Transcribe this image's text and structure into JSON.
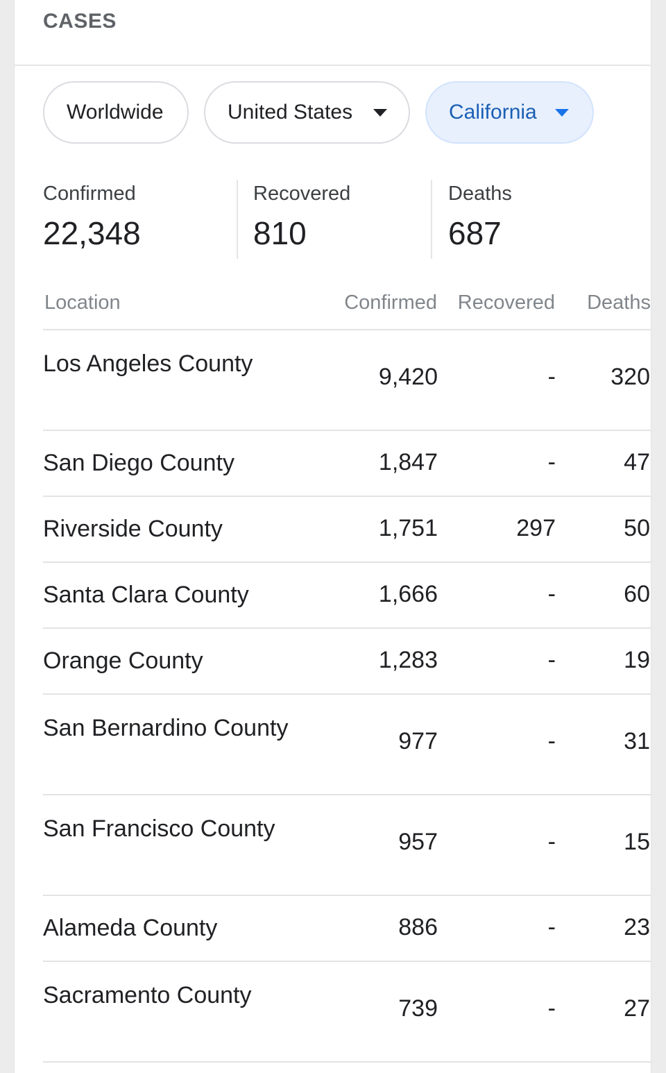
{
  "header": {
    "title": "CASES"
  },
  "filters": {
    "worldwide": "Worldwide",
    "country": "United States",
    "region": "California"
  },
  "summary": {
    "confirmed_label": "Confirmed",
    "confirmed_value": "22,348",
    "recovered_label": "Recovered",
    "recovered_value": "810",
    "deaths_label": "Deaths",
    "deaths_value": "687"
  },
  "table": {
    "columns": [
      "Location",
      "Confirmed",
      "Recovered",
      "Deaths"
    ],
    "rows": [
      {
        "location": "Los Angeles County",
        "confirmed": "9,420",
        "recovered": "-",
        "deaths": "320"
      },
      {
        "location": "San Diego County",
        "confirmed": "1,847",
        "recovered": "-",
        "deaths": "47"
      },
      {
        "location": "Riverside County",
        "confirmed": "1,751",
        "recovered": "297",
        "deaths": "50"
      },
      {
        "location": "Santa Clara County",
        "confirmed": "1,666",
        "recovered": "-",
        "deaths": "60"
      },
      {
        "location": "Orange County",
        "confirmed": "1,283",
        "recovered": "-",
        "deaths": "19"
      },
      {
        "location": "San Bernardino County",
        "confirmed": "977",
        "recovered": "-",
        "deaths": "31"
      },
      {
        "location": "San Francisco County",
        "confirmed": "957",
        "recovered": "-",
        "deaths": "15"
      },
      {
        "location": "Alameda County",
        "confirmed": "886",
        "recovered": "-",
        "deaths": "23"
      },
      {
        "location": "Sacramento County",
        "confirmed": "739",
        "recovered": "-",
        "deaths": "27"
      }
    ]
  }
}
